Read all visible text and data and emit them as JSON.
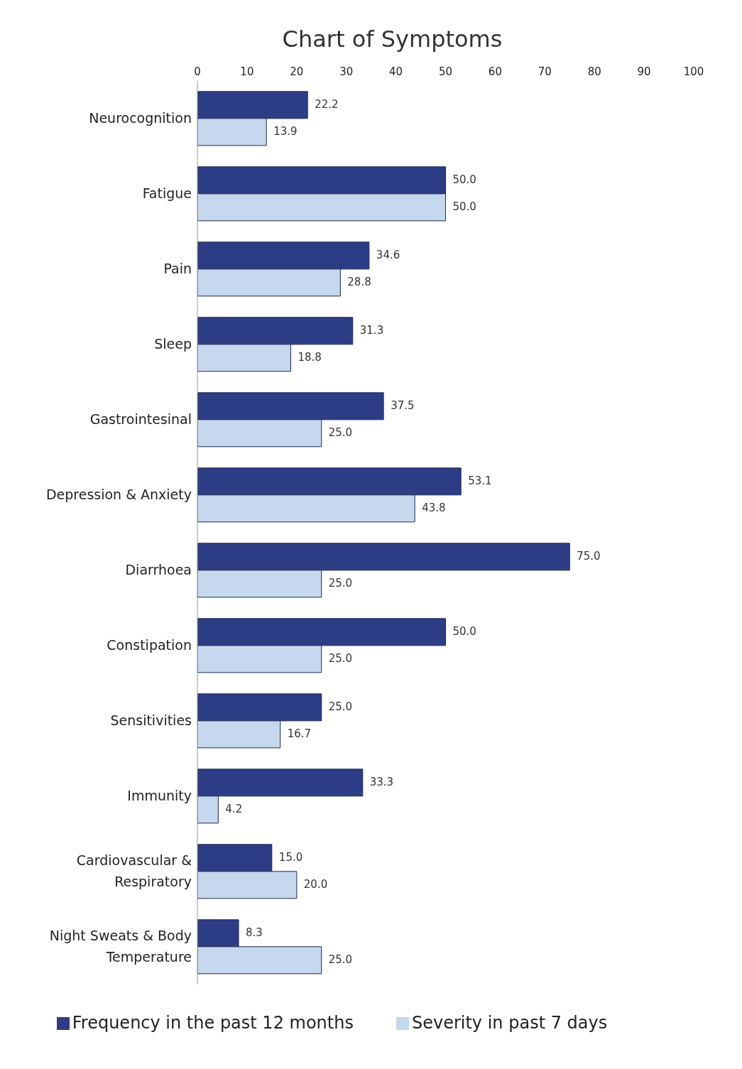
{
  "chart_data": {
    "type": "bar",
    "orientation": "horizontal",
    "title": "Chart of Symptoms",
    "categories": [
      "Neurocognition",
      "Fatigue",
      "Pain",
      "Sleep",
      "Gastrointesinal",
      "Depression & Anxiety",
      "Diarrhoea",
      "Constipation",
      "Sensitivities",
      "Immunity",
      "Cardiovascular & Respiratory",
      "Night Sweats & Body Temperature"
    ],
    "series": [
      {
        "name": "Frequency in the past 12 months",
        "color": "#2d3d85",
        "values": [
          22.2,
          50.0,
          34.6,
          31.3,
          37.5,
          53.1,
          75.0,
          50.0,
          25.0,
          33.3,
          15.0,
          8.3
        ],
        "value_labels": [
          "22.2",
          "50.0",
          "34.6",
          "31.3",
          "37.5",
          "53.1",
          "75.0",
          "50.0",
          "25.0",
          "33.3",
          "15.0",
          "8.3"
        ]
      },
      {
        "name": "Severity in past 7 days",
        "color": "#c6d8ee",
        "values": [
          13.9,
          50.0,
          28.8,
          18.8,
          25.0,
          43.8,
          25.0,
          25.0,
          16.7,
          4.2,
          20.0,
          25.0
        ],
        "value_labels": [
          "13.9",
          "50.0",
          "28.8",
          "18.8",
          "25.0",
          "43.8",
          "25.0",
          "25.0",
          "16.7",
          "4.2",
          "20.0",
          "25.0"
        ]
      }
    ],
    "xlim": [
      0,
      100
    ],
    "xticks": [
      0,
      10,
      20,
      30,
      40,
      50,
      60,
      70,
      80,
      90,
      100
    ],
    "grid": false,
    "legend": "bottom"
  }
}
